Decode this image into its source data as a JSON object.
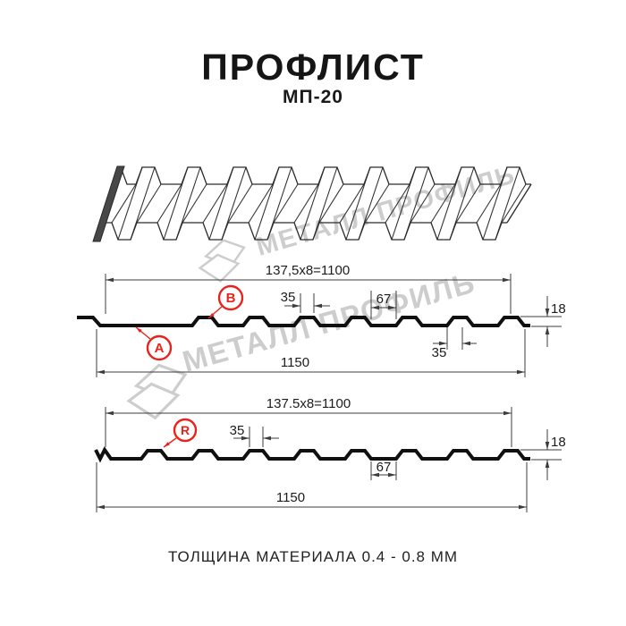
{
  "header": {
    "title": "ПРОФЛИСТ",
    "subtitle": "МП-20"
  },
  "watermark": {
    "text": "МЕТАЛЛ ПРОФИЛЬ"
  },
  "views": {
    "section_top": {
      "formula": "137,5x8=1100",
      "overall": "1150",
      "rib_top_width": "35",
      "valley_width": "67",
      "height": "18",
      "rib_bottom_width": "35",
      "marker_a": "A",
      "marker_b": "B"
    },
    "section_bottom": {
      "formula": "137.5x8=1100",
      "overall": "1150",
      "rib_top_width": "35",
      "valley_width": "67",
      "height": "18",
      "marker_r": "R"
    }
  },
  "footer": {
    "text": "ТОЛЩИНА МАТЕРИАЛА 0.4 - 0.8 ММ"
  },
  "colors": {
    "accent_red": "#e8231d",
    "line": "#101010",
    "dim_line": "#3c3c3c",
    "watermark": "#c5c5c5"
  }
}
